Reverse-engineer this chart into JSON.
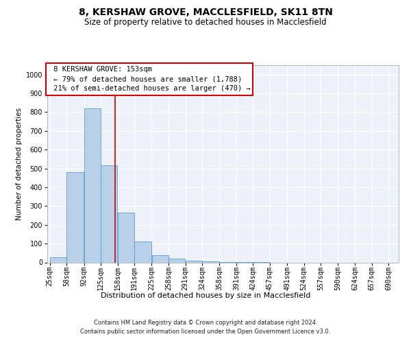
{
  "title_line1": "8, KERSHAW GROVE, MACCLESFIELD, SK11 8TN",
  "title_line2": "Size of property relative to detached houses in Macclesfield",
  "xlabel": "Distribution of detached houses by size in Macclesfield",
  "ylabel": "Number of detached properties",
  "footnote1": "Contains HM Land Registry data © Crown copyright and database right 2024.",
  "footnote2": "Contains public sector information licensed under the Open Government Licence v3.0.",
  "bin_edges": [
    25,
    58,
    92,
    125,
    158,
    191,
    225,
    258,
    291,
    324,
    358,
    391,
    424,
    457,
    491,
    524,
    557,
    590,
    624,
    657,
    690
  ],
  "bar_values": [
    28,
    480,
    820,
    515,
    265,
    110,
    40,
    20,
    10,
    5,
    2,
    1,
    1,
    0,
    0,
    0,
    0,
    0,
    0,
    0
  ],
  "property_size": 153,
  "property_label": "8 KERSHAW GROVE: 153sqm",
  "smaller_pct": "79%",
  "smaller_n": "1,788",
  "larger_pct": "21%",
  "larger_n": "470",
  "bar_facecolor": "#b8d0e8",
  "bar_edgecolor": "#5b9bd5",
  "vline_color": "#cc0000",
  "box_edgecolor": "#cc0000",
  "axes_bg": "#edf2f8",
  "grid_color": "#ffffff",
  "ylim_max": 1050,
  "yticks": [
    0,
    100,
    200,
    300,
    400,
    500,
    600,
    700,
    800,
    900,
    1000
  ],
  "title1_fontsize": 10,
  "title2_fontsize": 8.5,
  "ylabel_fontsize": 7.5,
  "xlabel_fontsize": 8,
  "annot_fontsize": 7.5,
  "tick_fontsize": 7,
  "footnote_fontsize": 6
}
